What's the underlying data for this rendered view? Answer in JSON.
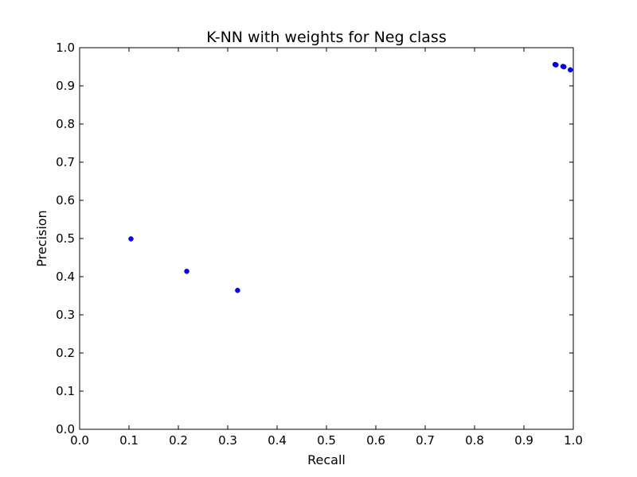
{
  "chart_data": {
    "type": "scatter",
    "title": "K-NN with weights for Neg class",
    "xlabel": "Recall",
    "ylabel": "Precision",
    "xlim": [
      0.0,
      1.0
    ],
    "ylim": [
      0.0,
      1.0
    ],
    "xticks": [
      "0.0",
      "0.1",
      "0.2",
      "0.3",
      "0.4",
      "0.5",
      "0.6",
      "0.7",
      "0.8",
      "0.9",
      "1.0"
    ],
    "yticks": [
      "0.0",
      "0.1",
      "0.2",
      "0.3",
      "0.4",
      "0.5",
      "0.6",
      "0.7",
      "0.8",
      "0.9",
      "1.0"
    ],
    "grid": false,
    "series": [
      {
        "color": "#0000ff",
        "points": [
          {
            "x": 0.104,
            "y": 0.499
          },
          {
            "x": 0.217,
            "y": 0.414
          },
          {
            "x": 0.32,
            "y": 0.364
          },
          {
            "x": 0.963,
            "y": 0.956
          },
          {
            "x": 0.965,
            "y": 0.955
          },
          {
            "x": 0.979,
            "y": 0.951
          },
          {
            "x": 0.981,
            "y": 0.95
          },
          {
            "x": 0.994,
            "y": 0.942
          }
        ]
      }
    ]
  }
}
